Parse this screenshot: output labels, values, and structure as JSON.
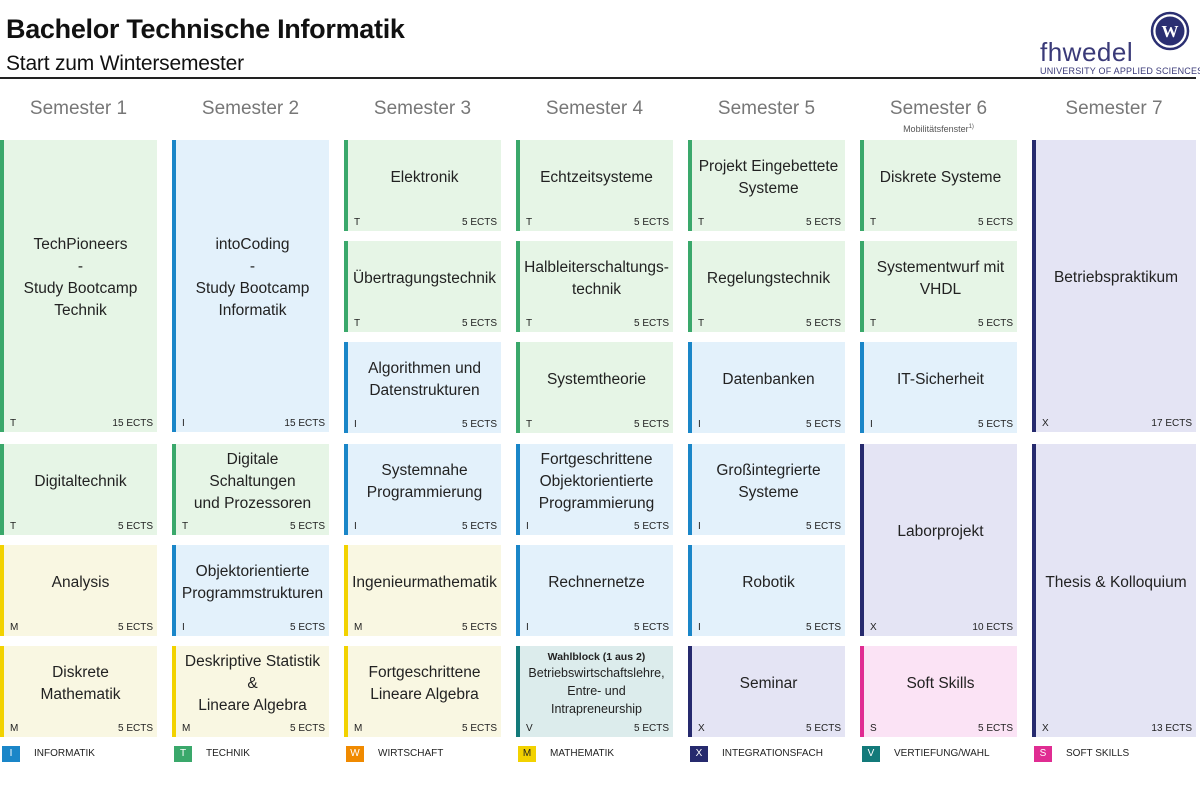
{
  "header": {
    "title": "Bachelor Technische Informatik",
    "subtitle": "Start zum Wintersemester",
    "logo_text": "fhwedel",
    "logo_subtext": "UNIVERSITY OF APPLIED SCIENCES",
    "logo_mark": "W"
  },
  "semesters": [
    {
      "label": "Semester 1"
    },
    {
      "label": "Semester 2"
    },
    {
      "label": "Semester 3"
    },
    {
      "label": "Semester 4"
    },
    {
      "label": "Semester 5"
    },
    {
      "label": "Semester 6",
      "note": "Mobilitätsfenster",
      "note_sup": "1)"
    },
    {
      "label": "Semester 7"
    }
  ],
  "courses": {
    "s1": [
      {
        "name": "TechPioneers\n-\nStudy Bootcamp\nTechnik",
        "cat": "T",
        "ects": "15 ECTS"
      },
      {
        "name": "Digitaltechnik",
        "cat": "T",
        "ects": "5 ECTS"
      },
      {
        "name": "Analysis",
        "cat": "M",
        "ects": "5 ECTS"
      },
      {
        "name": "Diskrete Mathematik",
        "cat": "M",
        "ects": "5 ECTS"
      }
    ],
    "s2": [
      {
        "name": "intoCoding\n-\nStudy Bootcamp\nInformatik",
        "cat": "I",
        "ects": "15 ECTS"
      },
      {
        "name": "Digitale Schaltungen\nund Prozessoren",
        "cat": "T",
        "ects": "5 ECTS"
      },
      {
        "name": "Objektorientierte\nProgrammstrukturen",
        "cat": "I",
        "ects": "5 ECTS"
      },
      {
        "name": "Deskriptive Statistik &\nLineare Algebra",
        "cat": "M",
        "ects": "5 ECTS"
      }
    ],
    "s3": [
      {
        "name": "Elektronik",
        "cat": "T",
        "ects": "5 ECTS"
      },
      {
        "name": "Übertragungstechnik",
        "cat": "T",
        "ects": "5 ECTS"
      },
      {
        "name": "Algorithmen und\nDatenstrukturen",
        "cat": "I",
        "ects": "5 ECTS"
      },
      {
        "name": "Systemnahe\nProgrammierung",
        "cat": "I",
        "ects": "5 ECTS"
      },
      {
        "name": "Ingenieurmathematik",
        "cat": "M",
        "ects": "5 ECTS"
      },
      {
        "name": "Fortgeschrittene\nLineare Algebra",
        "cat": "M",
        "ects": "5 ECTS"
      }
    ],
    "s4": [
      {
        "name": "Echtzeitsysteme",
        "cat": "T",
        "ects": "5 ECTS"
      },
      {
        "name": "Halbleiterschaltungs-\ntechnik",
        "cat": "T",
        "ects": "5 ECTS"
      },
      {
        "name": "Systemtheorie",
        "cat": "T",
        "ects": "5 ECTS"
      },
      {
        "name": "Fortgeschrittene\nObjektorientierte\nProgrammierung",
        "cat": "I",
        "ects": "5 ECTS"
      },
      {
        "name": "Rechnernetze",
        "cat": "I",
        "ects": "5 ECTS"
      },
      {
        "head": "Wahlblock (1 aus 2)",
        "name": "Betriebswirtschaftslehre,\nEntre- und\nIntrapreneurship",
        "cat": "V",
        "ects": "5 ECTS"
      }
    ],
    "s5": [
      {
        "name": "Projekt Eingebettete\nSysteme",
        "cat": "T",
        "ects": "5 ECTS"
      },
      {
        "name": "Regelungstechnik",
        "cat": "T",
        "ects": "5 ECTS"
      },
      {
        "name": "Datenbanken",
        "cat": "I",
        "ects": "5 ECTS"
      },
      {
        "name": "Großintegrierte\nSysteme",
        "cat": "I",
        "ects": "5 ECTS"
      },
      {
        "name": "Robotik",
        "cat": "I",
        "ects": "5 ECTS"
      },
      {
        "name": "Seminar",
        "cat": "X",
        "ects": "5 ECTS"
      }
    ],
    "s6": [
      {
        "name": "Diskrete Systeme",
        "cat": "T",
        "ects": "5 ECTS"
      },
      {
        "name": "Systementwurf mit\nVHDL",
        "cat": "T",
        "ects": "5 ECTS"
      },
      {
        "name": "IT-Sicherheit",
        "cat": "I",
        "ects": "5 ECTS"
      },
      {
        "name": "Laborprojekt",
        "cat": "X",
        "ects": "10 ECTS"
      },
      {
        "name": "Soft Skills",
        "cat": "S",
        "ects": "5 ECTS"
      }
    ],
    "s7": [
      {
        "name": "Betriebspraktikum",
        "cat": "X",
        "ects": "17 ECTS"
      },
      {
        "name": "Thesis & Kolloquium",
        "cat": "X",
        "ects": "13 ECTS"
      }
    ]
  },
  "legend": [
    {
      "code": "I",
      "label": "INFORMATIK",
      "color": "#1a86c8"
    },
    {
      "code": "T",
      "label": "TECHNIK",
      "color": "#3aa86b"
    },
    {
      "code": "W",
      "label": "WIRTSCHAFT",
      "color": "#f08a00"
    },
    {
      "code": "M",
      "label": "MATHEMATIK",
      "color": "#f2d200"
    },
    {
      "code": "X",
      "label": "INTEGRATIONSFACH",
      "color": "#262a6e"
    },
    {
      "code": "V",
      "label": "VERTIEFUNG/WAHL",
      "color": "#137a7a"
    },
    {
      "code": "S",
      "label": "SOFT SKILLS",
      "color": "#e02c92"
    }
  ]
}
